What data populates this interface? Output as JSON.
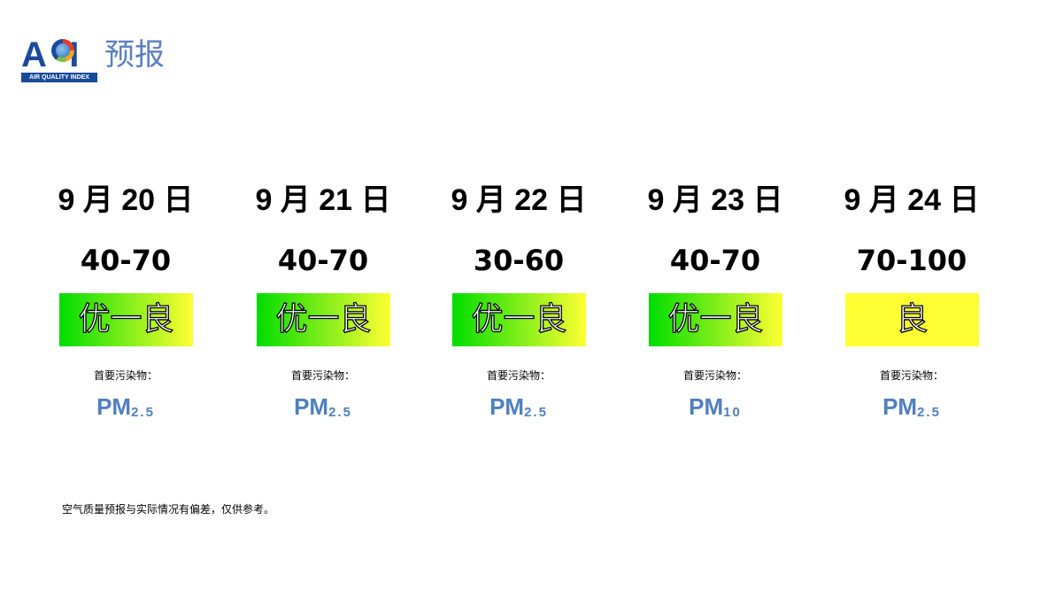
{
  "header": {
    "logo_text": "AQI",
    "logo_subtext": "AIR QUALITY INDEX",
    "title": "预报"
  },
  "label_pollutant": "首要污染物：",
  "days": [
    {
      "date": "9 月 20 日",
      "range": "40-70",
      "level": "优一良",
      "pollutant": "PM",
      "pollutant_sub": "2.5"
    },
    {
      "date": "9 月 21 日",
      "range": "40-70",
      "level": "优一良",
      "pollutant": "PM",
      "pollutant_sub": "2.5"
    },
    {
      "date": "9 月 22 日",
      "range": "30-60",
      "level": "优一良",
      "pollutant": "PM",
      "pollutant_sub": "2.5"
    },
    {
      "date": "9 月 23 日",
      "range": "40-70",
      "level": "优一良",
      "pollutant": "PM",
      "pollutant_sub": "10"
    },
    {
      "date": "9 月 24 日",
      "range": "70-100",
      "level": "良",
      "pollutant": "PM",
      "pollutant_sub": "2.5"
    }
  ],
  "colors": {
    "good": "#00dd00",
    "moderate": "#ffff33",
    "pollutant": "#4f7fc0",
    "logo": "#1a4a9c"
  },
  "note": "空气质量预报与实际情况有偏差，仅供参考。"
}
